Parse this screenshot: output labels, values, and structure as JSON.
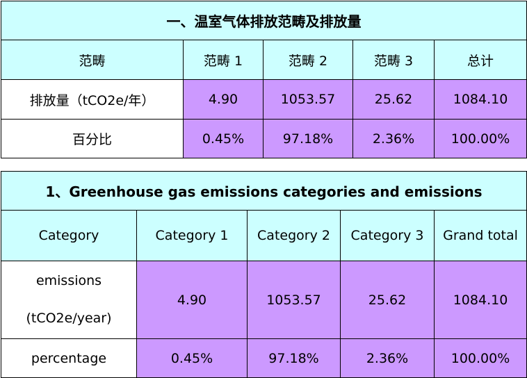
{
  "table_cn": {
    "title": "一、温室气体排放范畴及排放量",
    "header": [
      "范畴",
      "范畴 1",
      "范畴 2",
      "范畴 3",
      "总计"
    ],
    "rows": [
      {
        "label": "排放量（tCO2e/年）",
        "values": [
          "4.90",
          "1053.57",
          "25.62",
          "1084.10"
        ]
      },
      {
        "label": "百分比",
        "values": [
          "0.45%",
          "97.18%",
          "2.36%",
          "100.00%"
        ]
      }
    ]
  },
  "table_en": {
    "title": "1、Greenhouse gas emissions categories and emissions",
    "header": [
      "Category",
      "Category 1",
      "Category 2",
      "Category 3",
      "Grand total"
    ],
    "rows": [
      {
        "label_line1": "emissions",
        "label_line2": "(tCO2e/year)",
        "values": [
          "4.90",
          "1053.57",
          "25.62",
          "1084.10"
        ]
      },
      {
        "label": "percentage",
        "values": [
          "0.45%",
          "97.18%",
          "2.36%",
          "100.00%"
        ]
      }
    ]
  },
  "colors": {
    "header_bg": "#ccffff",
    "value_bg": "#cc99ff",
    "label_bg": "#ffffff",
    "border": "#000000"
  }
}
